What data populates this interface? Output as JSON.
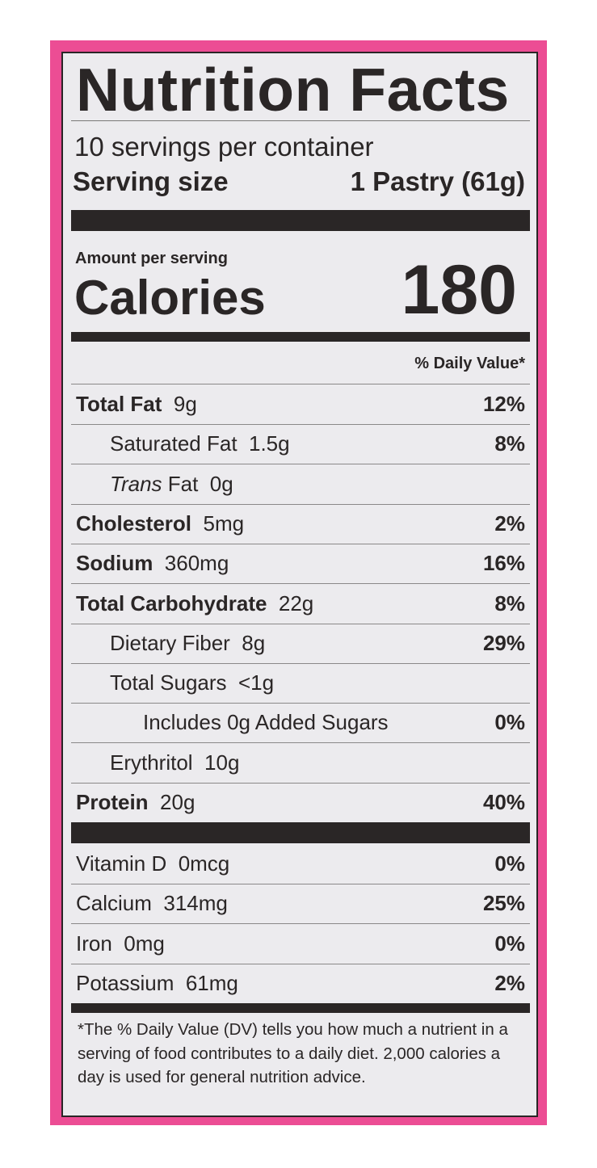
{
  "title": "Nutrition Facts",
  "servings_per_container": "10 servings per container",
  "serving_size_label": "Serving size",
  "serving_size_value": "1 Pastry (61g)",
  "amount_per_serving": "Amount per serving",
  "calories_label": "Calories",
  "calories_value": "180",
  "daily_value_header": "% Daily Value*",
  "nutrients": [
    {
      "name": "Total Fat",
      "amount": "9g",
      "dv": "12%",
      "bold": true,
      "indent": 0
    },
    {
      "name": "Saturated Fat",
      "amount": "1.5g",
      "dv": "8%",
      "bold": false,
      "indent": 1
    },
    {
      "name_italic": "Trans",
      "name": "Fat",
      "amount": "0g",
      "dv": "",
      "bold": false,
      "indent": 1
    },
    {
      "name": "Cholesterol",
      "amount": "5mg",
      "dv": "2%",
      "bold": true,
      "indent": 0
    },
    {
      "name": "Sodium",
      "amount": "360mg",
      "dv": "16%",
      "bold": true,
      "indent": 0
    },
    {
      "name": "Total Carbohydrate",
      "amount": "22g",
      "dv": "8%",
      "bold": true,
      "indent": 0
    },
    {
      "name": "Dietary Fiber",
      "amount": "8g",
      "dv": "29%",
      "bold": false,
      "indent": 1
    },
    {
      "name": "Total Sugars",
      "amount": "<1g",
      "dv": "",
      "bold": false,
      "indent": 1
    },
    {
      "name": "Includes 0g Added Sugars",
      "amount": "",
      "dv": "0%",
      "bold": false,
      "indent": 2
    },
    {
      "name": "Erythritol",
      "amount": "10g",
      "dv": "",
      "bold": false,
      "indent": 1
    },
    {
      "name": "Protein",
      "amount": "20g",
      "dv": "40%",
      "bold": true,
      "indent": 0
    }
  ],
  "vitamins": [
    {
      "name": "Vitamin D",
      "amount": "0mcg",
      "dv": "0%"
    },
    {
      "name": "Calcium",
      "amount": "314mg",
      "dv": "25%"
    },
    {
      "name": "Iron",
      "amount": "0mg",
      "dv": "0%"
    },
    {
      "name": "Potassium",
      "amount": "61mg",
      "dv": "2%"
    }
  ],
  "footnote": "*The % Daily Value (DV) tells you how much a nutrient in a serving of food contributes to a daily diet. 2,000 calories a day is used for general nutrition advice.",
  "colors": {
    "border": "#ec4d94",
    "panel": "#ecebee",
    "ink": "#2a2626"
  }
}
